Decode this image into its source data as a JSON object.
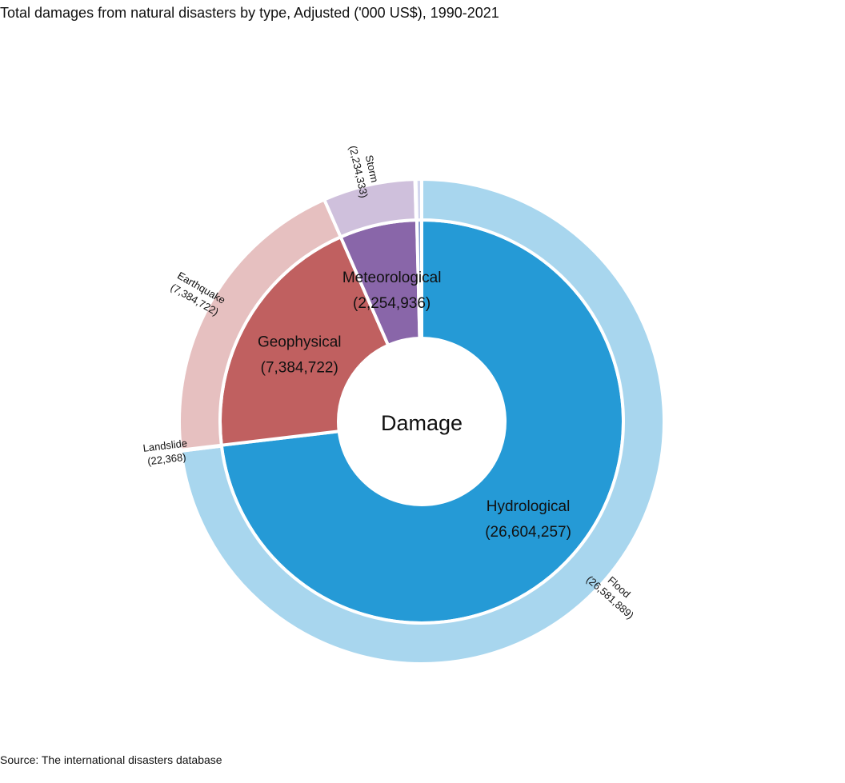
{
  "title": "Total damages from natural disasters by type, Adjusted ('000 US$), 1990-2021",
  "source": "Source: The international disasters database",
  "chart_data": {
    "type": "sunburst",
    "center_label": "Damage",
    "inner": [
      {
        "name": "Hydrological",
        "value": 26604257,
        "label": "(26,604,257)",
        "color": "#259ad6"
      },
      {
        "name": "Geophysical",
        "value": 7384722,
        "label": "(7,384,722)",
        "color": "#c06060"
      },
      {
        "name": "Meteorological",
        "value": 2254936,
        "label": "(2,254,936)",
        "color": "#8966a9"
      },
      {
        "name": "",
        "value": 140000,
        "label": "",
        "color": "#8b9fd1"
      }
    ],
    "outer": [
      {
        "name": "Flood",
        "value": 26581889,
        "label": "(26,581,889)",
        "color": "#a8d6ee",
        "parent": "Hydrological"
      },
      {
        "name": "Landslide",
        "value": 22368,
        "label": "(22,368)",
        "color": "#a8d6ee",
        "parent": "Hydrological"
      },
      {
        "name": "Earthquake",
        "value": 7384722,
        "label": "(7,384,722)",
        "color": "#e6c0c0",
        "parent": "Geophysical"
      },
      {
        "name": "Storm",
        "value": 2234333,
        "label": "(2,234,333)",
        "color": "#cfc0dc",
        "parent": "Meteorological"
      },
      {
        "name": "",
        "value": 20603,
        "label": "",
        "color": "#cfc0dc",
        "parent": "Meteorological"
      },
      {
        "name": "",
        "value": 140000,
        "label": "",
        "color": "#d2d6ee",
        "parent": ""
      }
    ]
  }
}
